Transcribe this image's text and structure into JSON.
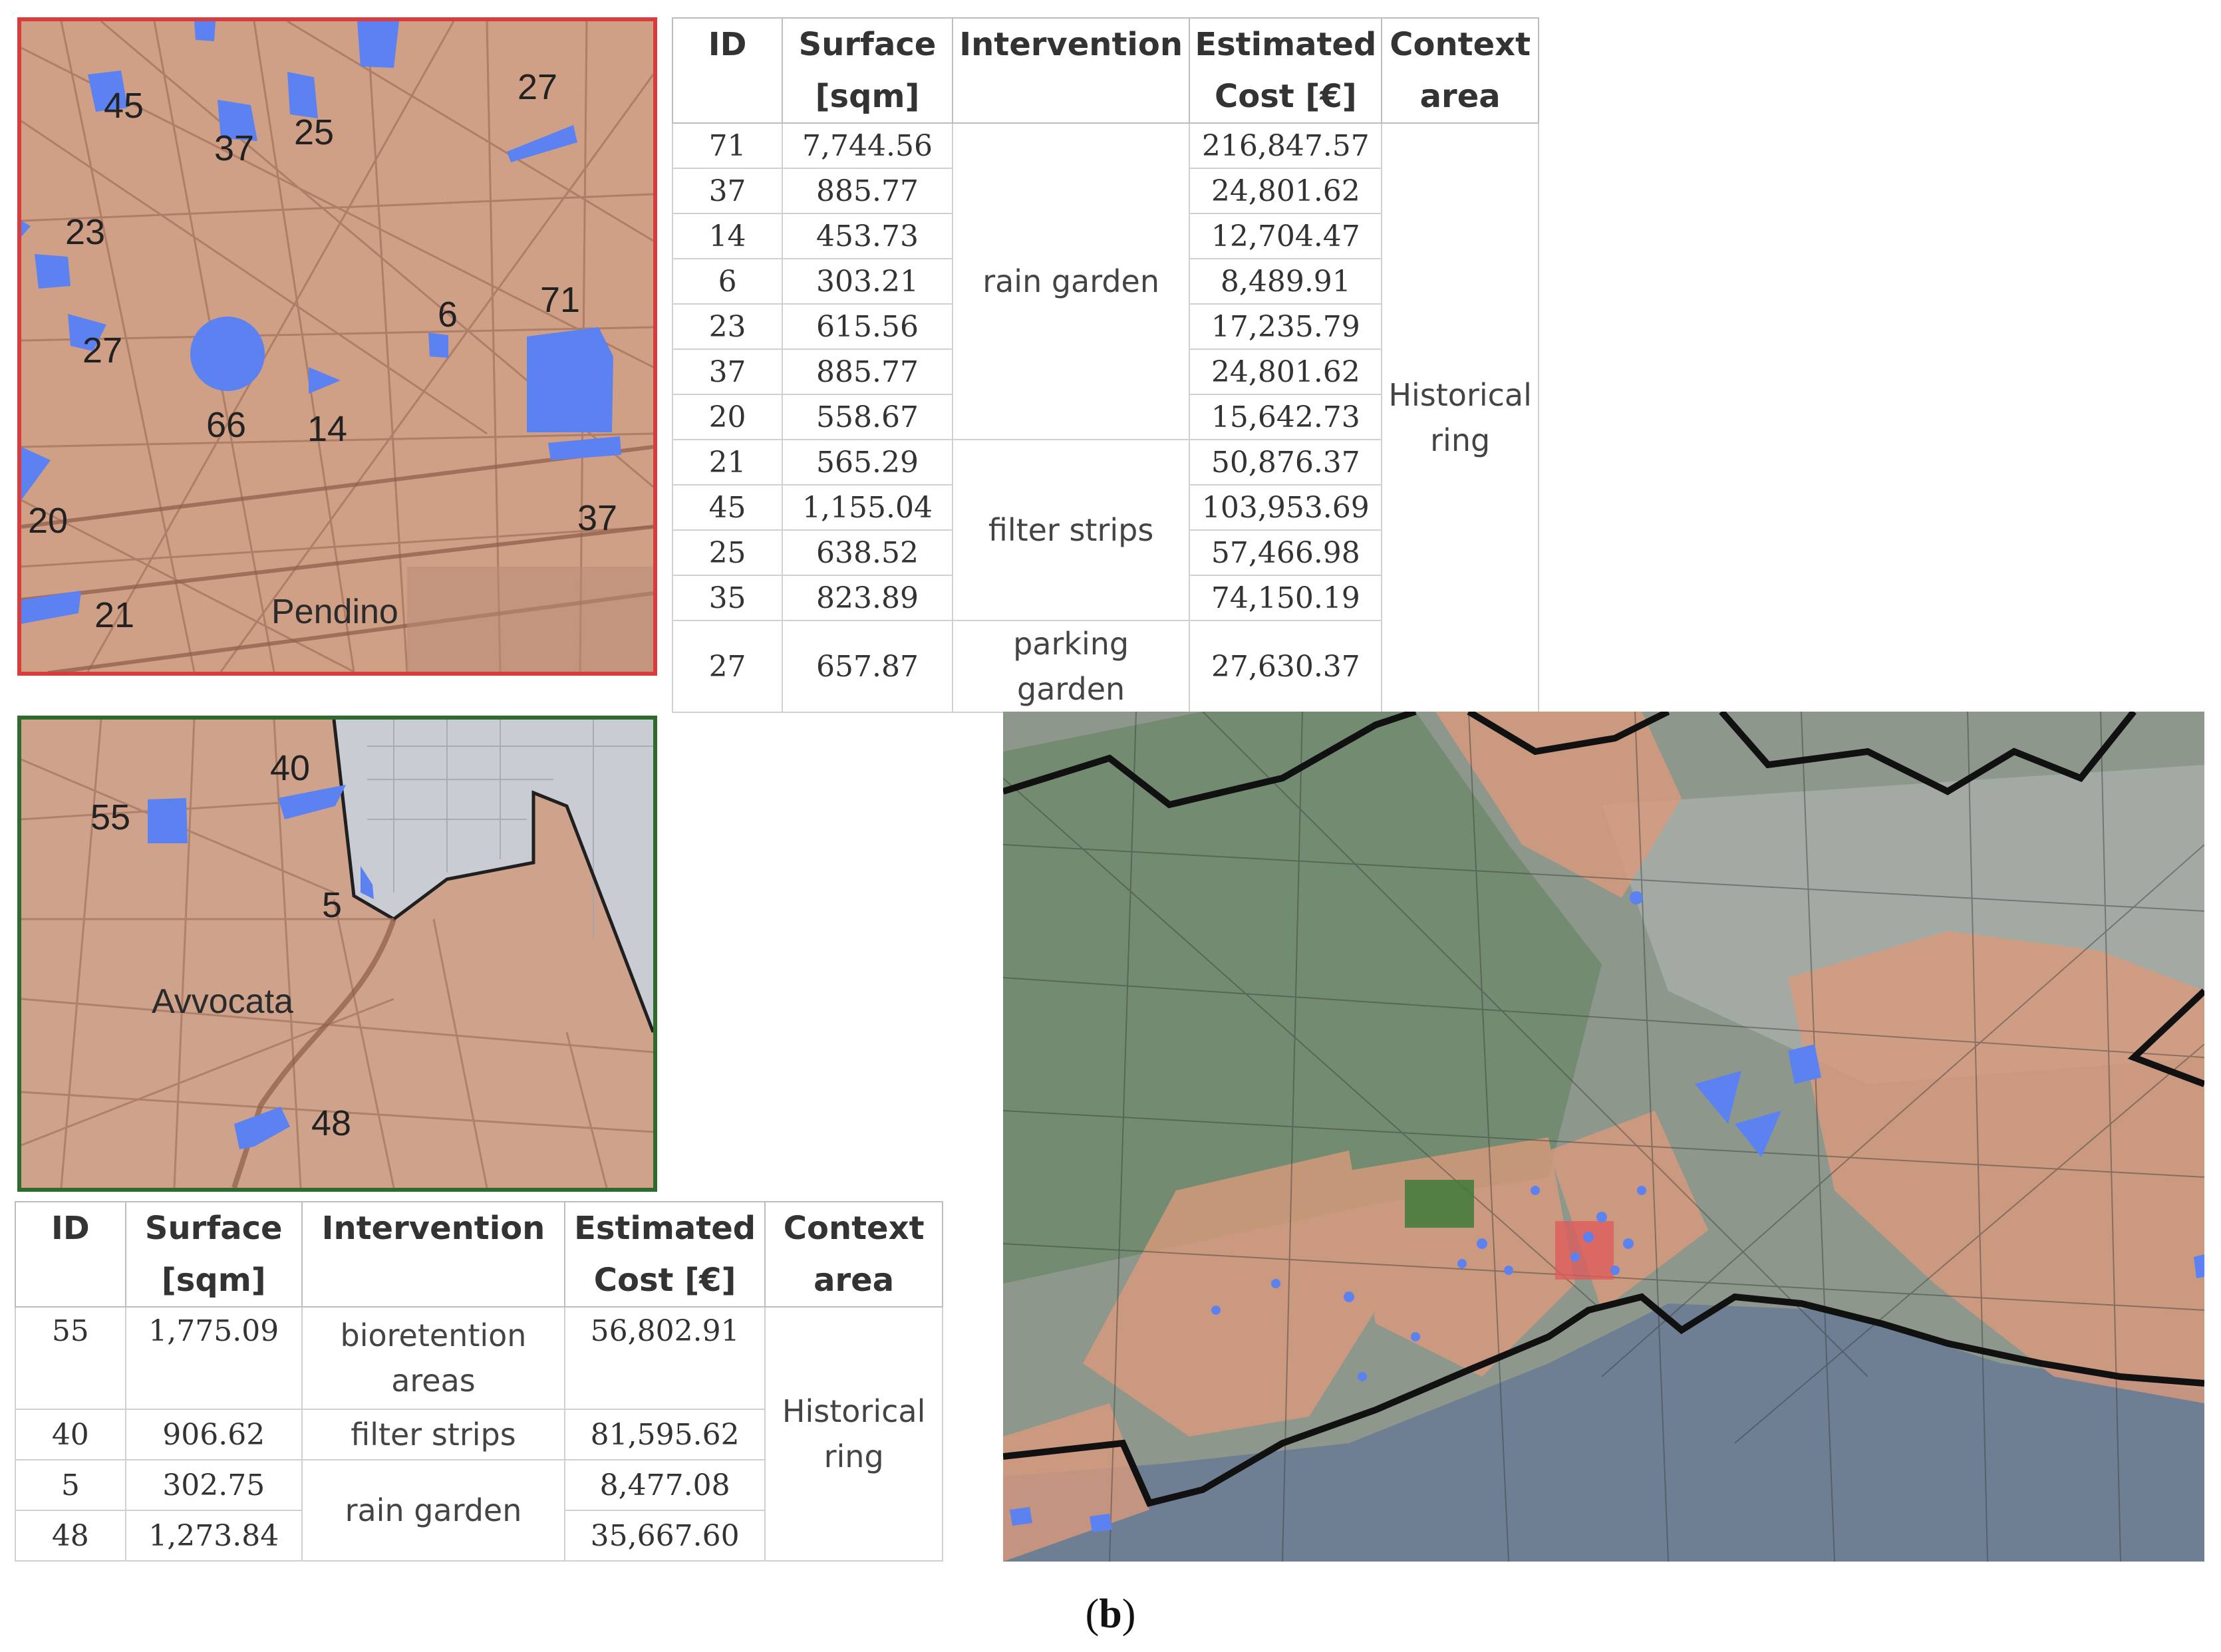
{
  "pendino_map": {
    "place_label": "Pendino",
    "site_labels": [
      "45",
      "37",
      "25",
      "27",
      "23",
      "6",
      "71",
      "27",
      "66",
      "14",
      "20",
      "37",
      "21"
    ]
  },
  "avvocata_map": {
    "place_label": "Avvocata",
    "site_labels": [
      "40",
      "55",
      "5",
      "48"
    ]
  },
  "pendino_table": {
    "headers": [
      "ID",
      "Surface [sqm]",
      "Intervention",
      "Estimated Cost [€]",
      "Context area"
    ],
    "rows": [
      {
        "id": "71",
        "surface": "7,744.56",
        "cost": "216,847.57"
      },
      {
        "id": "37",
        "surface": "885.77",
        "cost": "24,801.62"
      },
      {
        "id": "14",
        "surface": "453.73",
        "cost": "12,704.47"
      },
      {
        "id": "6",
        "surface": "303.21",
        "cost": "8,489.91"
      },
      {
        "id": "23",
        "surface": "615.56",
        "cost": "17,235.79"
      },
      {
        "id": "37",
        "surface": "885.77",
        "cost": "24,801.62"
      },
      {
        "id": "20",
        "surface": "558.67",
        "cost": "15,642.73"
      },
      {
        "id": "21",
        "surface": "565.29",
        "cost": "50,876.37"
      },
      {
        "id": "45",
        "surface": "1,155.04",
        "cost": "103,953.69"
      },
      {
        "id": "25",
        "surface": "638.52",
        "cost": "57,466.98"
      },
      {
        "id": "35",
        "surface": "823.89",
        "cost": "74,150.19"
      },
      {
        "id": "27",
        "surface": "657.87",
        "cost": "27,630.37"
      }
    ],
    "interventions": [
      "rain garden",
      "filter strips",
      "parking garden"
    ],
    "context_area": "Historical ring"
  },
  "avvocata_table": {
    "headers": [
      "ID",
      "Surface [sqm]",
      "Intervention",
      "Estimated Cost [€]",
      "Context area"
    ],
    "rows": [
      {
        "id": "55",
        "surface": "1,775.09",
        "cost": "56,802.91"
      },
      {
        "id": "40",
        "surface": "906.62",
        "cost": "81,595.62"
      },
      {
        "id": "5",
        "surface": "302.75",
        "cost": "8,477.08"
      },
      {
        "id": "48",
        "surface": "1,273.84",
        "cost": "35,667.60"
      }
    ],
    "interventions": [
      "bioretention areas",
      "filter strips",
      "rain garden"
    ],
    "context_area": "Historical ring"
  },
  "caption": {
    "open": "(",
    "letter": "b",
    "close": ")"
  },
  "colors": {
    "intervention_blue": "#5b82f0",
    "district_overlay": "#d99a7c",
    "pendino_frame": "#d93c3c",
    "avvocata_frame": "#2f6b2f",
    "boundary": "#111111",
    "sea": "#6f7f93"
  }
}
